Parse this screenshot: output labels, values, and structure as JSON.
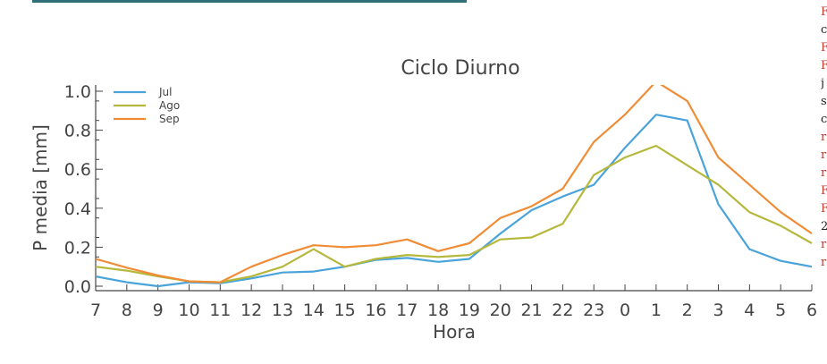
{
  "chart_data": {
    "type": "line",
    "title": "Ciclo Diurno",
    "xlabel": "Hora",
    "ylabel": "P media [mm]",
    "categories": [
      "7",
      "8",
      "9",
      "10",
      "11",
      "12",
      "13",
      "14",
      "15",
      "16",
      "17",
      "18",
      "19",
      "20",
      "21",
      "22",
      "23",
      "0",
      "1",
      "2",
      "3",
      "4",
      "5",
      "6"
    ],
    "yticks": [
      "0.0",
      "0.2",
      "0.4",
      "0.6",
      "0.8",
      "1.0"
    ],
    "ylim": [
      0.0,
      1.0
    ],
    "grid": false,
    "legend_position": "top-left",
    "series": [
      {
        "name": "Jul",
        "color": "#4aa3d9",
        "values": [
          0.05,
          0.02,
          0.0,
          0.02,
          0.015,
          0.04,
          0.07,
          0.075,
          0.1,
          0.135,
          0.145,
          0.125,
          0.14,
          0.27,
          0.39,
          0.46,
          0.52,
          0.71,
          0.88,
          0.85,
          0.42,
          0.19,
          0.13,
          0.1
        ]
      },
      {
        "name": "Ago",
        "color": "#b5b83a",
        "values": [
          0.1,
          0.08,
          0.05,
          0.025,
          0.02,
          0.05,
          0.1,
          0.19,
          0.1,
          0.14,
          0.16,
          0.15,
          0.16,
          0.24,
          0.25,
          0.32,
          0.57,
          0.66,
          0.72,
          0.62,
          0.52,
          0.38,
          0.31,
          0.22
        ]
      },
      {
        "name": "Sep",
        "color": "#f08c35",
        "values": [
          0.14,
          0.095,
          0.055,
          0.025,
          0.02,
          0.1,
          0.16,
          0.21,
          0.2,
          0.21,
          0.24,
          0.18,
          0.22,
          0.35,
          0.41,
          0.5,
          0.74,
          0.88,
          1.05,
          0.95,
          0.66,
          0.52,
          0.38,
          0.27
        ]
      }
    ]
  },
  "side_text": [
    "F",
    "c",
    "F",
    "F",
    "j",
    "s",
    "c",
    "r",
    "r",
    "r",
    "F",
    "F",
    "2",
    "r",
    "r"
  ]
}
